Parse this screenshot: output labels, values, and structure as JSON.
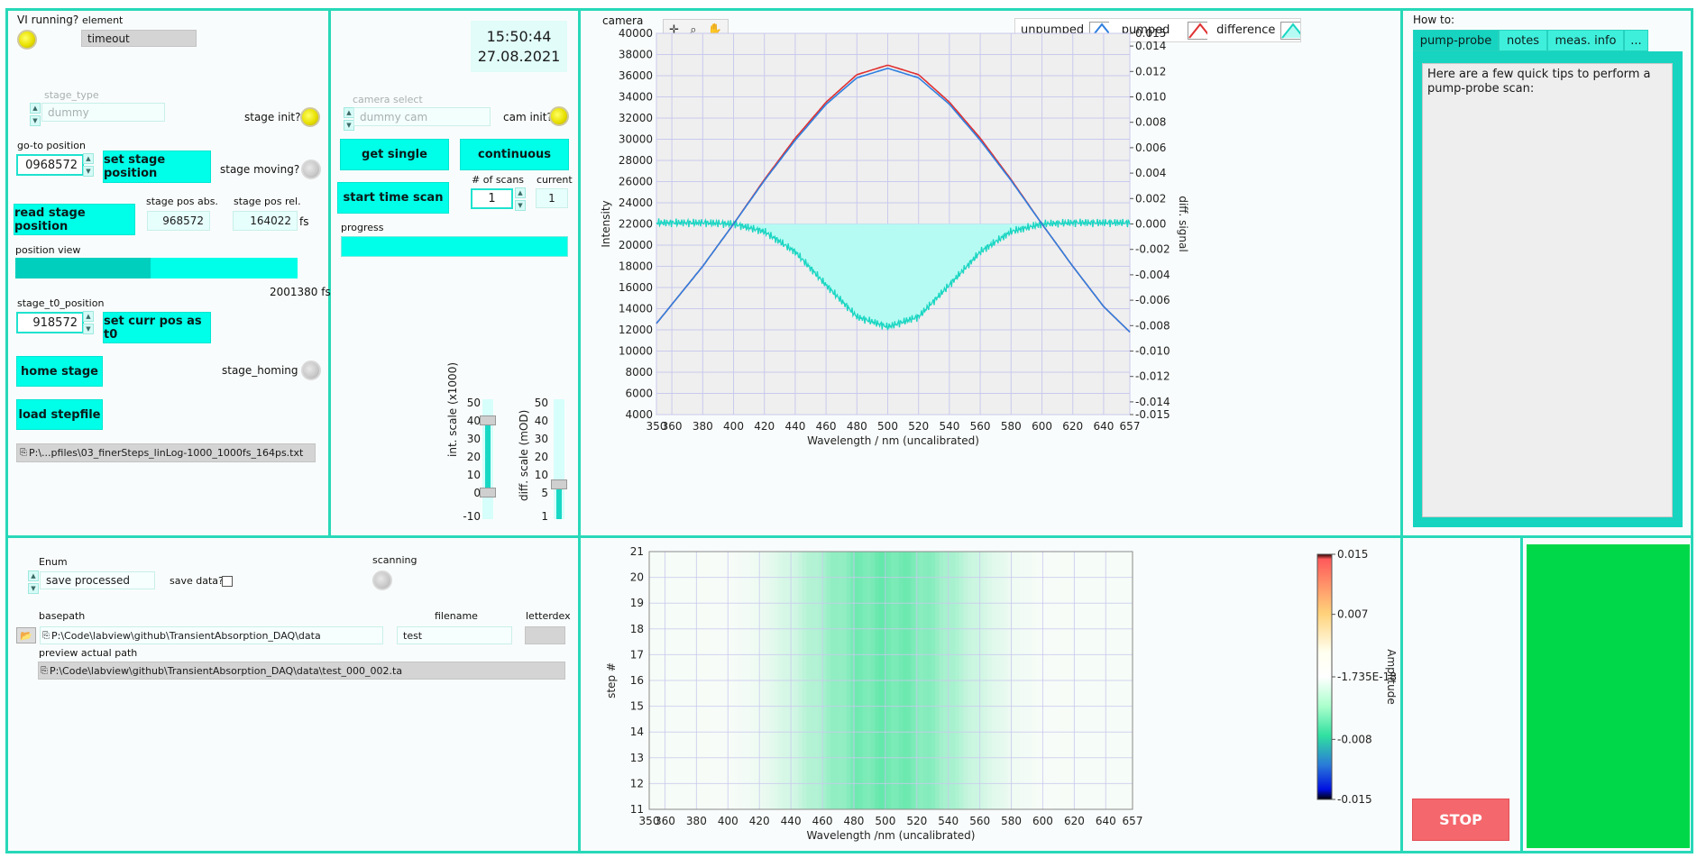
{
  "top_left": {
    "vi_running_label": "VI running?",
    "element_label": "element",
    "element_value": "timeout",
    "stage_type_label": "stage_type",
    "stage_type_value": "dummy",
    "stage_init_label": "stage init?",
    "goto_label": "go-to position",
    "goto_value": "0968572",
    "set_stage_btn": "set stage position",
    "stage_moving_label": "stage moving?",
    "read_stage_btn": "read stage position",
    "pos_abs_label": "stage pos abs.",
    "pos_abs_value": "968572",
    "pos_rel_label": "stage pos rel.",
    "pos_rel_value": "164022",
    "pos_rel_unit": "fs",
    "position_view_label": "position view",
    "position_view_max": "2001380 fs",
    "position_view_fraction": 0.48,
    "t0_label": "stage_t0_position",
    "t0_value": "918572",
    "set_t0_btn": "set curr pos as t0",
    "home_btn": "home stage",
    "homing_label": "stage_homing",
    "load_stepfile_btn": "load stepfile",
    "stepfile_path": "P:\\...pfiles\\03_finerSteps_linLog-1000_1000fs_164ps.txt"
  },
  "top_mid": {
    "time": "15:50:44",
    "date": "27.08.2021",
    "camera_select_label": "camera select",
    "camera_select_value": "dummy cam",
    "cam_init_label": "cam init?",
    "get_single_btn": "get single",
    "continuous_btn": "continuous",
    "start_scan_btn": "start time scan",
    "num_scans_label": "# of scans",
    "num_scans_value": "1",
    "current_label": "current",
    "current_value": "1",
    "progress_label": "progress",
    "int_scale_label": "int. scale (x1000)",
    "int_scale_ticks": [
      "50",
      "40",
      "30",
      "20",
      "10",
      "0",
      "-10"
    ],
    "diff_scale_label": "diff. scale (mOD)",
    "diff_scale_ticks": [
      "50",
      "40",
      "30",
      "20",
      "10",
      "5",
      "1"
    ]
  },
  "camera_plot": {
    "plot_label": "camera",
    "legend": [
      "unpumped",
      "pumped",
      "difference"
    ],
    "xlabel": "Wavelength / nm (uncalibrated)",
    "ylabel": "Intensity",
    "y2label": "diff. signal",
    "colors": {
      "unpumped": "#2f7fe0",
      "pumped": "#e03030",
      "difference": "#19d6c2",
      "fill": "#b6fbf3"
    }
  },
  "howto": {
    "title": "How to:",
    "tabs": [
      "pump-probe",
      "notes",
      "meas. info",
      "..."
    ],
    "text": "Here are a few quick tips to perform a pump-probe scan:"
  },
  "bottom_left": {
    "enum_label": "Enum",
    "enum_value": "save processed",
    "save_data_label": "save data?",
    "scanning_label": "scanning",
    "basepath_label": "basepath",
    "basepath_value": "P:\\Code\\labview\\github\\TransientAbsorption_DAQ\\data",
    "filename_label": "filename",
    "filename_value": "test",
    "letterdex_label": "letterdex",
    "preview_label": "preview actual path",
    "preview_value": "P:\\Code\\labview\\github\\TransientAbsorption_DAQ\\data\\test_000_002.ta"
  },
  "heatmap": {
    "xlabel": "Wavelength /nm (uncalibrated)",
    "ylabel": "step #",
    "colorbar_label": "Amplitude",
    "colorbar_ticks": [
      "0.015",
      "0.007",
      "-1.735E-18",
      "-0.008",
      "-0.015"
    ]
  },
  "stop_btn": "STOP",
  "chart_data": [
    {
      "type": "line",
      "title": "camera",
      "xlabel": "Wavelength / nm (uncalibrated)",
      "ylabel": "Intensity",
      "y2label": "diff. signal",
      "xlim": [
        350,
        657
      ],
      "ylim": [
        4000,
        40000
      ],
      "y2lim": [
        -0.015,
        0.015
      ],
      "x_ticks": [
        "350",
        "360",
        "380",
        "400",
        "420",
        "440",
        "460",
        "480",
        "500",
        "520",
        "540",
        "560",
        "580",
        "600",
        "620",
        "640",
        "657"
      ],
      "y_ticks": [
        "4000",
        "6000",
        "8000",
        "10000",
        "12000",
        "14000",
        "16000",
        "18000",
        "20000",
        "22000",
        "24000",
        "26000",
        "28000",
        "30000",
        "32000",
        "34000",
        "36000",
        "38000",
        "40000"
      ],
      "y2_ticks": [
        "0.015",
        "0.014",
        "0.012",
        "0.010",
        "0.008",
        "0.006",
        "0.004",
        "0.002",
        "0.000",
        "-0.002",
        "-0.004",
        "-0.006",
        "-0.008",
        "-0.010",
        "-0.012",
        "-0.014",
        "-0.015"
      ],
      "legend_position": "top-right",
      "grid": true,
      "series": [
        {
          "name": "unpumped",
          "axis": "left",
          "x": [
            350,
            380,
            400,
            420,
            440,
            460,
            480,
            500,
            520,
            540,
            560,
            580,
            600,
            620,
            640,
            657
          ],
          "values": [
            12600,
            18000,
            22000,
            26100,
            29900,
            33300,
            35800,
            36700,
            35800,
            33300,
            29900,
            26100,
            22000,
            18000,
            14200,
            11800
          ]
        },
        {
          "name": "pumped",
          "axis": "left",
          "x": [
            350,
            380,
            400,
            420,
            440,
            460,
            480,
            500,
            520,
            540,
            560,
            580,
            600,
            620,
            640,
            657
          ],
          "values": [
            12600,
            18000,
            22000,
            26200,
            30100,
            33500,
            36100,
            37000,
            36100,
            33500,
            30100,
            26200,
            22000,
            18000,
            14200,
            11800
          ]
        },
        {
          "name": "difference",
          "axis": "right",
          "x": [
            350,
            380,
            400,
            420,
            440,
            460,
            480,
            500,
            520,
            540,
            560,
            580,
            600,
            620,
            640,
            657
          ],
          "values": [
            0.0001,
            0.0001,
            0.0,
            -0.0006,
            -0.0022,
            -0.0048,
            -0.0073,
            -0.0081,
            -0.0073,
            -0.0048,
            -0.0022,
            -0.0006,
            0.0,
            0.0001,
            0.0001,
            0.0001
          ]
        }
      ]
    },
    {
      "type": "heatmap",
      "xlabel": "Wavelength /nm (uncalibrated)",
      "ylabel": "step #",
      "xlim": [
        350,
        657
      ],
      "ylim": [
        11,
        21
      ],
      "x_ticks": [
        "350",
        "360",
        "380",
        "400",
        "420",
        "440",
        "460",
        "480",
        "500",
        "520",
        "540",
        "560",
        "580",
        "600",
        "620",
        "640",
        "657"
      ],
      "y_ticks": [
        "11",
        "12",
        "13",
        "14",
        "15",
        "16",
        "17",
        "18",
        "19",
        "20",
        "21"
      ],
      "color_scale": {
        "min": -0.015,
        "max": 0.015,
        "label": "Amplitude"
      },
      "x": [
        350,
        380,
        400,
        420,
        440,
        460,
        480,
        500,
        520,
        540,
        560,
        580,
        600,
        620,
        640,
        657
      ],
      "row_profile": [
        0.0001,
        0.0001,
        0.0,
        -0.0006,
        -0.0022,
        -0.0048,
        -0.0073,
        -0.0081,
        -0.0073,
        -0.0048,
        -0.0022,
        -0.0006,
        0.0,
        0.0001,
        0.0001,
        0.0001
      ]
    }
  ]
}
